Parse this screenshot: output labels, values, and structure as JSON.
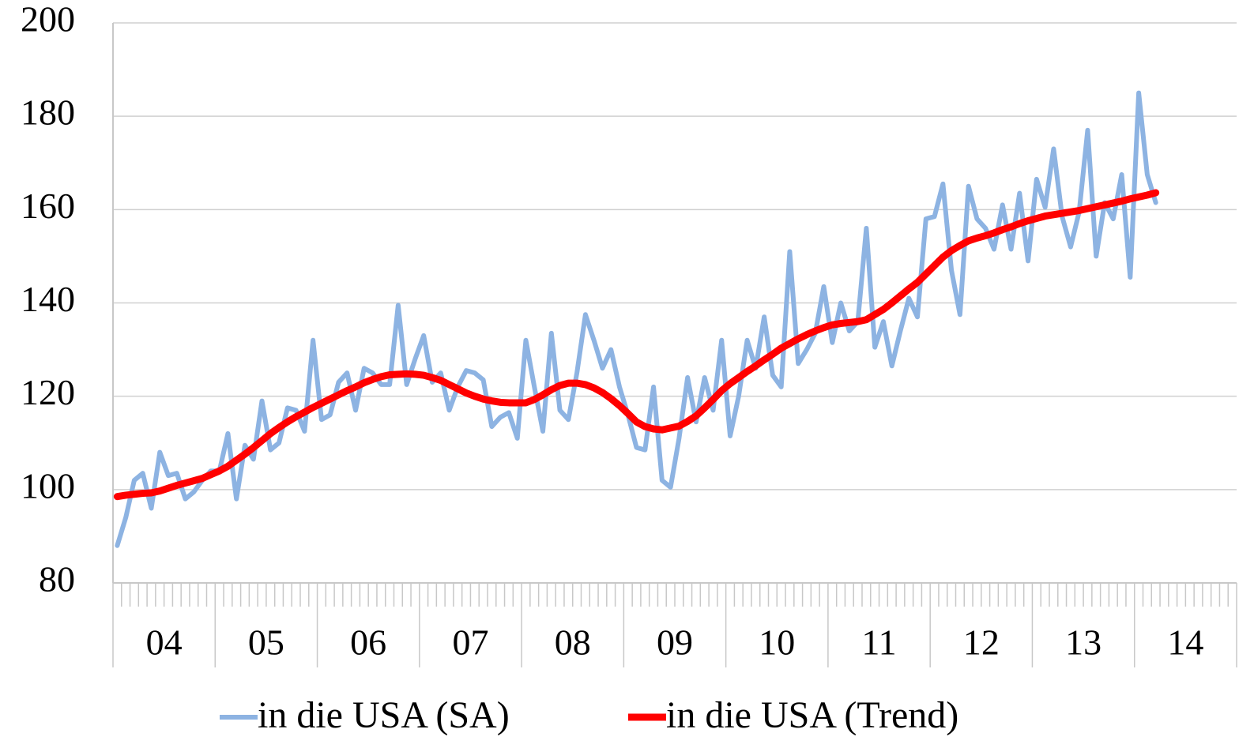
{
  "chart_data": {
    "type": "line",
    "categories": [
      "04",
      null,
      null,
      null,
      null,
      null,
      null,
      null,
      null,
      null,
      null,
      null,
      "05",
      null,
      null,
      null,
      null,
      null,
      null,
      null,
      null,
      null,
      null,
      null,
      "06",
      null,
      null,
      null,
      null,
      null,
      null,
      null,
      null,
      null,
      null,
      null,
      "07",
      null,
      null,
      null,
      null,
      null,
      null,
      null,
      null,
      null,
      null,
      null,
      "08",
      null,
      null,
      null,
      null,
      null,
      null,
      null,
      null,
      null,
      null,
      null,
      "09",
      null,
      null,
      null,
      null,
      null,
      null,
      null,
      null,
      null,
      null,
      null,
      "10",
      null,
      null,
      null,
      null,
      null,
      null,
      null,
      null,
      null,
      null,
      null,
      "11",
      null,
      null,
      null,
      null,
      null,
      null,
      null,
      null,
      null,
      null,
      null,
      "12",
      null,
      null,
      null,
      null,
      null,
      null,
      null,
      null,
      null,
      null,
      null,
      "13",
      null,
      null,
      null,
      null,
      null,
      null,
      null,
      null,
      null,
      null,
      null,
      "14",
      null,
      null,
      null,
      null,
      null,
      null,
      null,
      null,
      null,
      null,
      null
    ],
    "series": [
      {
        "name": "in die USA (SA)",
        "color": "#8db3e2",
        "values": [
          88,
          94,
          102,
          103.5,
          96,
          108,
          103,
          103.5,
          98,
          99.5,
          102,
          104,
          104,
          112,
          98,
          109.5,
          106.5,
          119,
          108.5,
          110,
          117.5,
          117,
          112.5,
          132,
          115,
          116,
          123,
          125,
          117,
          126,
          125,
          122.5,
          122.5,
          139.5,
          122.5,
          128,
          133,
          123,
          125,
          117,
          122,
          125.5,
          125,
          123.5,
          113.5,
          115.5,
          116.5,
          111,
          132,
          122,
          112.5,
          133.5,
          117,
          115,
          125,
          137.5,
          132,
          126,
          130,
          122,
          116,
          109,
          108.5,
          122,
          102,
          100.5,
          111,
          124,
          114.5,
          124,
          117,
          132,
          111.5,
          120,
          132,
          126,
          137,
          124.5,
          122,
          151,
          127,
          130,
          133.5,
          143.5,
          131.5,
          140,
          134,
          136,
          156,
          130.5,
          136,
          126.5,
          134,
          141,
          137,
          158,
          158.5,
          165.5,
          147,
          137.5,
          165,
          158,
          156,
          151.5,
          161,
          151.5,
          163.5,
          149,
          166.5,
          160.5,
          173,
          158.5,
          152,
          159.5,
          177,
          150,
          161.5,
          158,
          167.5,
          145.5,
          185,
          167.5,
          161.5,
          null,
          null,
          null,
          null,
          null,
          null,
          null,
          null,
          null
        ]
      },
      {
        "name": "in die USA (Trend)",
        "color": "#ff0000",
        "values": [
          98.5,
          98.8,
          99,
          99.2,
          99.3,
          99.7,
          100.3,
          100.9,
          101.4,
          101.9,
          102.4,
          103.2,
          104,
          105,
          106.3,
          107.6,
          109,
          110.5,
          112,
          113.3,
          114.5,
          115.6,
          116.6,
          117.6,
          118.5,
          119.4,
          120.3,
          121.2,
          122,
          122.9,
          123.6,
          124.2,
          124.6,
          124.7,
          124.8,
          124.7,
          124.5,
          124,
          123.4,
          122.5,
          121.6,
          120.7,
          120,
          119.4,
          119,
          118.7,
          118.6,
          118.6,
          118.6,
          119.3,
          120.3,
          121.4,
          122.3,
          122.8,
          122.8,
          122.5,
          121.8,
          120.8,
          119.5,
          118,
          116.3,
          114.5,
          113.5,
          113,
          112.8,
          113.2,
          113.6,
          114.6,
          115.8,
          117.5,
          119.3,
          121.2,
          122.7,
          124,
          125.3,
          126.5,
          127.8,
          129,
          130.3,
          131.3,
          132.3,
          133.2,
          134,
          134.7,
          135.3,
          135.6,
          135.8,
          136,
          136.4,
          137.5,
          138.6,
          140,
          141.5,
          143,
          144.4,
          146.2,
          148,
          149.8,
          151.2,
          152.3,
          153.3,
          153.9,
          154.4,
          155,
          155.7,
          156.3,
          157,
          157.6,
          158.1,
          158.6,
          158.9,
          159.2,
          159.5,
          159.8,
          160.2,
          160.6,
          161,
          161.4,
          161.8,
          162.3,
          162.7,
          163.1,
          163.6,
          null,
          null,
          null,
          null,
          null,
          null,
          null,
          null,
          null
        ]
      }
    ],
    "ylim": [
      80,
      200
    ],
    "yticks": [
      80,
      100,
      120,
      140,
      160,
      180,
      200
    ],
    "grid": true,
    "legend": "bottom"
  }
}
